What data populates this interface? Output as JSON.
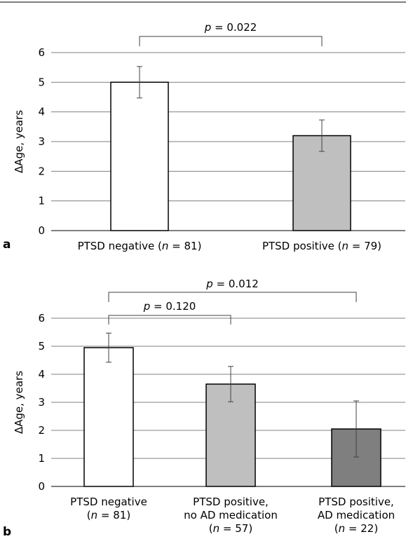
{
  "chart_data": [
    {
      "type": "bar",
      "panel_label": "a",
      "ylabel": "ΔAge, years",
      "ylim": [
        0,
        6
      ],
      "yticks": [
        "0",
        "1",
        "2",
        "3",
        "4",
        "5",
        "6"
      ],
      "grid": true,
      "categories": [
        {
          "lines": [
            {
              "parts": [
                "PTSD negative (",
                "n",
                " = 81)"
              ]
            }
          ]
        },
        {
          "lines": [
            {
              "parts": [
                "PTSD positive (",
                "n",
                " = 79)"
              ]
            }
          ]
        }
      ],
      "values": [
        5.0,
        3.2
      ],
      "errors": [
        0.53,
        0.53
      ],
      "colors": [
        "#ffffff",
        "#bfbfbf"
      ],
      "comparisons": [
        {
          "from": 0,
          "to": 1,
          "p_symbol": "p",
          "p_text": " = 0.022"
        }
      ]
    },
    {
      "type": "bar",
      "panel_label": "b",
      "ylabel": "ΔAge, years",
      "ylim": [
        0,
        6
      ],
      "yticks": [
        "0",
        "1",
        "2",
        "3",
        "4",
        "5",
        "6"
      ],
      "grid": true,
      "categories": [
        {
          "lines": [
            {
              "parts": [
                "PTSD negative"
              ]
            },
            {
              "parts": [
                "(",
                "n",
                " = 81)"
              ]
            }
          ]
        },
        {
          "lines": [
            {
              "parts": [
                "PTSD positive,"
              ]
            },
            {
              "parts": [
                "no AD medication"
              ]
            },
            {
              "parts": [
                "(",
                "n",
                " = 57)"
              ]
            }
          ]
        },
        {
          "lines": [
            {
              "parts": [
                "PTSD positive,"
              ]
            },
            {
              "parts": [
                "AD medication"
              ]
            },
            {
              "parts": [
                "(",
                "n",
                " = 22)"
              ]
            }
          ]
        }
      ],
      "values": [
        4.95,
        3.65,
        2.05
      ],
      "errors": [
        0.52,
        0.63,
        1.0
      ],
      "colors": [
        "#ffffff",
        "#bfbfbf",
        "#7f7f7f"
      ],
      "comparisons": [
        {
          "from": 0,
          "to": 2,
          "p_symbol": "p",
          "p_text": " = 0.012"
        },
        {
          "from": 0,
          "to": 1,
          "p_symbol": "p",
          "p_text": " = 0.120"
        }
      ]
    }
  ]
}
